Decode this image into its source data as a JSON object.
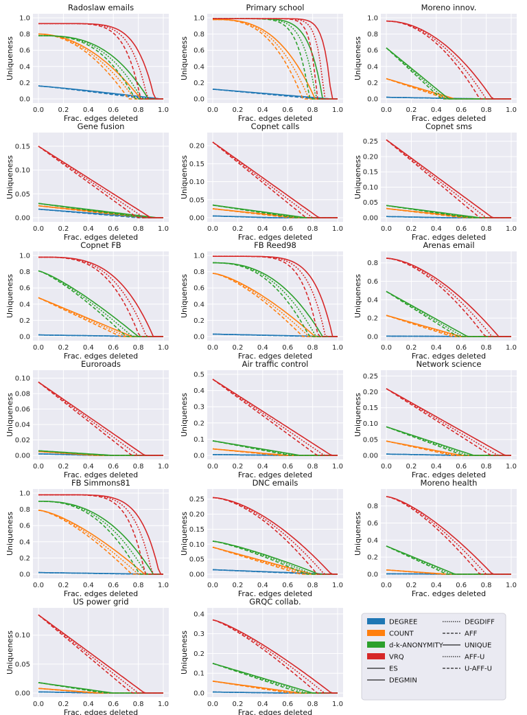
{
  "figure": {
    "xlabel": "Frac. edges deleted",
    "ylabel": "Uniqueness",
    "x_ticks": [
      "0.0",
      "0.2",
      "0.4",
      "0.6",
      "0.8",
      "1.0"
    ]
  },
  "colors": {
    "DEGREE": "#1f77b4",
    "COUNT": "#ff7f0e",
    "d-k-ANONYMITY": "#2ca02c",
    "VRQ": "#d62728",
    "panel_bg": "#eaeaf2",
    "grid": "#ffffff"
  },
  "legend": {
    "measures": [
      {
        "label": "DEGREE",
        "color": "#1f77b4"
      },
      {
        "label": "COUNT",
        "color": "#ff7f0e"
      },
      {
        "label": "d-k-ANONYMITY",
        "color": "#2ca02c"
      },
      {
        "label": "VRQ",
        "color": "#d62728"
      }
    ],
    "strategies": [
      {
        "label": "ES",
        "dash": "solid"
      },
      {
        "label": "DEGMIN",
        "dash": "solid"
      },
      {
        "label": "DEGDIFF",
        "dash": "dotted"
      },
      {
        "label": "AFF",
        "dash": "dashed"
      },
      {
        "label": "UNIQUE",
        "dash": "solid"
      },
      {
        "label": "AFF-U",
        "dash": "dotted"
      },
      {
        "label": "U-AFF-U",
        "dash": "dashed"
      }
    ]
  },
  "chart_data": [
    {
      "type": "line",
      "title": "Radoslaw emails",
      "xlabel": "Frac. edges deleted",
      "ylabel": "Uniqueness",
      "xlim": [
        0,
        1
      ],
      "ylim": [
        0,
        1.0
      ],
      "y_ticks": [
        "0.0",
        "0.2",
        "0.4",
        "0.6",
        "0.8",
        "1.0"
      ],
      "series": [
        {
          "name": "DEGREE",
          "color": "#1f77b4",
          "start": 0.16,
          "knee": 0.98,
          "sharp": 0.9
        },
        {
          "name": "COUNT",
          "color": "#ff7f0e",
          "start": 0.8,
          "knee": 0.82,
          "sharp": 0.5
        },
        {
          "name": "d-k-ANONYMITY",
          "color": "#2ca02c",
          "start": 0.78,
          "knee": 0.88,
          "sharp": 0.35
        },
        {
          "name": "VRQ",
          "color": "#d62728",
          "start": 0.93,
          "knee": 0.93,
          "sharp": 0.15
        }
      ]
    },
    {
      "type": "line",
      "title": "Primary school",
      "xlabel": "Frac. edges deleted",
      "ylabel": "Uniqueness",
      "xlim": [
        0,
        1
      ],
      "ylim": [
        0,
        1.0
      ],
      "y_ticks": [
        "0.0",
        "0.2",
        "0.4",
        "0.6",
        "0.8",
        "1.0"
      ],
      "series": [
        {
          "name": "DEGREE",
          "color": "#1f77b4",
          "start": 0.12,
          "knee": 0.95,
          "sharp": 1.0
        },
        {
          "name": "COUNT",
          "color": "#ff7f0e",
          "start": 0.98,
          "knee": 0.82,
          "sharp": 0.35
        },
        {
          "name": "d-k-ANONYMITY",
          "color": "#2ca02c",
          "start": 0.99,
          "knee": 0.88,
          "sharp": 0.12
        },
        {
          "name": "VRQ",
          "color": "#d62728",
          "start": 0.99,
          "knee": 0.95,
          "sharp": 0.06
        }
      ]
    },
    {
      "type": "line",
      "title": "Moreno innov.",
      "xlabel": "Frac. edges deleted",
      "ylabel": "Uniqueness",
      "xlim": [
        0,
        1
      ],
      "ylim": [
        0,
        1.0
      ],
      "y_ticks": [
        "0.0",
        "0.2",
        "0.4",
        "0.6",
        "0.8",
        "1.0"
      ],
      "series": [
        {
          "name": "DEGREE",
          "color": "#1f77b4",
          "start": 0.02,
          "knee": 0.8,
          "sharp": 1.0
        },
        {
          "name": "COUNT",
          "color": "#ff7f0e",
          "start": 0.25,
          "knee": 0.55,
          "sharp": 1.0
        },
        {
          "name": "d-k-ANONYMITY",
          "color": "#2ca02c",
          "start": 0.63,
          "knee": 0.5,
          "sharp": 1.0
        },
        {
          "name": "VRQ",
          "color": "#d62728",
          "start": 0.96,
          "knee": 0.85,
          "sharp": 0.5
        }
      ]
    },
    {
      "type": "line",
      "title": "Gene fusion",
      "xlabel": "Frac. edges deleted",
      "ylabel": "Uniqueness",
      "xlim": [
        0,
        1
      ],
      "ylim": [
        0,
        0.17
      ],
      "y_ticks": [
        "0.00",
        "0.05",
        "0.10",
        "0.15"
      ],
      "series": [
        {
          "name": "DEGREE",
          "color": "#1f77b4",
          "start": 0.018,
          "knee": 0.9,
          "sharp": 1.0
        },
        {
          "name": "COUNT",
          "color": "#ff7f0e",
          "start": 0.025,
          "knee": 0.95,
          "sharp": 1.0
        },
        {
          "name": "d-k-ANONYMITY",
          "color": "#2ca02c",
          "start": 0.03,
          "knee": 0.95,
          "sharp": 1.0
        },
        {
          "name": "VRQ",
          "color": "#d62728",
          "start": 0.15,
          "knee": 0.9,
          "sharp": 1.0
        }
      ]
    },
    {
      "type": "line",
      "title": "Copnet calls",
      "xlabel": "Frac. edges deleted",
      "ylabel": "Uniqueness",
      "xlim": [
        0,
        1
      ],
      "ylim": [
        0,
        0.225
      ],
      "y_ticks": [
        "0.00",
        "0.05",
        "0.10",
        "0.15",
        "0.20"
      ],
      "series": [
        {
          "name": "DEGREE",
          "color": "#1f77b4",
          "start": 0.005,
          "knee": 0.5,
          "sharp": 1.0
        },
        {
          "name": "COUNT",
          "color": "#ff7f0e",
          "start": 0.025,
          "knee": 0.7,
          "sharp": 1.0
        },
        {
          "name": "d-k-ANONYMITY",
          "color": "#2ca02c",
          "start": 0.035,
          "knee": 0.75,
          "sharp": 1.0
        },
        {
          "name": "VRQ",
          "color": "#d62728",
          "start": 0.21,
          "knee": 0.85,
          "sharp": 1.0
        }
      ]
    },
    {
      "type": "line",
      "title": "Copnet sms",
      "xlabel": "Frac. edges deleted",
      "ylabel": "Uniqueness",
      "xlim": [
        0,
        1
      ],
      "ylim": [
        0,
        0.265
      ],
      "y_ticks": [
        "0.00",
        "0.05",
        "0.10",
        "0.15",
        "0.20",
        "0.25"
      ],
      "series": [
        {
          "name": "DEGREE",
          "color": "#1f77b4",
          "start": 0.004,
          "knee": 0.5,
          "sharp": 1.0
        },
        {
          "name": "COUNT",
          "color": "#ff7f0e",
          "start": 0.03,
          "knee": 0.7,
          "sharp": 1.0
        },
        {
          "name": "d-k-ANONYMITY",
          "color": "#2ca02c",
          "start": 0.04,
          "knee": 0.75,
          "sharp": 1.0
        },
        {
          "name": "VRQ",
          "color": "#d62728",
          "start": 0.255,
          "knee": 0.85,
          "sharp": 1.0
        }
      ]
    },
    {
      "type": "line",
      "title": "Copnet FB",
      "xlabel": "Frac. edges deleted",
      "ylabel": "Uniqueness",
      "xlim": [
        0,
        1
      ],
      "ylim": [
        0,
        1.0
      ],
      "y_ticks": [
        "0.0",
        "0.2",
        "0.4",
        "0.6",
        "0.8",
        "1.0"
      ],
      "series": [
        {
          "name": "DEGREE",
          "color": "#1f77b4",
          "start": 0.02,
          "knee": 0.9,
          "sharp": 1.0
        },
        {
          "name": "COUNT",
          "color": "#ff7f0e",
          "start": 0.48,
          "knee": 0.75,
          "sharp": 1.0
        },
        {
          "name": "d-k-ANONYMITY",
          "color": "#2ca02c",
          "start": 0.81,
          "knee": 0.8,
          "sharp": 0.8
        },
        {
          "name": "VRQ",
          "color": "#d62728",
          "start": 0.98,
          "knee": 0.92,
          "sharp": 0.3
        }
      ]
    },
    {
      "type": "line",
      "title": "FB Reed98",
      "xlabel": "Frac. edges deleted",
      "ylabel": "Uniqueness",
      "xlim": [
        0,
        1
      ],
      "ylim": [
        0,
        1.0
      ],
      "y_ticks": [
        "0.0",
        "0.2",
        "0.4",
        "0.6",
        "0.8",
        "1.0"
      ],
      "series": [
        {
          "name": "DEGREE",
          "color": "#1f77b4",
          "start": 0.03,
          "knee": 0.95,
          "sharp": 1.0
        },
        {
          "name": "COUNT",
          "color": "#ff7f0e",
          "start": 0.78,
          "knee": 0.82,
          "sharp": 0.7
        },
        {
          "name": "d-k-ANONYMITY",
          "color": "#2ca02c",
          "start": 0.91,
          "knee": 0.88,
          "sharp": 0.4
        },
        {
          "name": "VRQ",
          "color": "#d62728",
          "start": 0.99,
          "knee": 0.96,
          "sharp": 0.15
        }
      ]
    },
    {
      "type": "line",
      "title": "Arenas email",
      "xlabel": "Frac. edges deleted",
      "ylabel": "Uniqueness",
      "xlim": [
        0,
        1
      ],
      "ylim": [
        0,
        0.88
      ],
      "y_ticks": [
        "0.0",
        "0.2",
        "0.4",
        "0.6",
        "0.8"
      ],
      "series": [
        {
          "name": "DEGREE",
          "color": "#1f77b4",
          "start": 0.005,
          "knee": 0.8,
          "sharp": 1.0
        },
        {
          "name": "COUNT",
          "color": "#ff7f0e",
          "start": 0.23,
          "knee": 0.6,
          "sharp": 1.0
        },
        {
          "name": "d-k-ANONYMITY",
          "color": "#2ca02c",
          "start": 0.49,
          "knee": 0.65,
          "sharp": 1.0
        },
        {
          "name": "VRQ",
          "color": "#d62728",
          "start": 0.85,
          "knee": 0.9,
          "sharp": 0.6
        }
      ]
    },
    {
      "type": "line",
      "title": "Euroroads",
      "xlabel": "Frac. edges deleted",
      "ylabel": "Uniqueness",
      "xlim": [
        0,
        1
      ],
      "ylim": [
        0,
        0.105
      ],
      "y_ticks": [
        "0.00",
        "0.02",
        "0.04",
        "0.06",
        "0.08",
        "0.10"
      ],
      "series": [
        {
          "name": "DEGREE",
          "color": "#1f77b4",
          "start": 0.002,
          "knee": 0.5,
          "sharp": 1.0
        },
        {
          "name": "COUNT",
          "color": "#ff7f0e",
          "start": 0.005,
          "knee": 0.5,
          "sharp": 1.0
        },
        {
          "name": "d-k-ANONYMITY",
          "color": "#2ca02c",
          "start": 0.006,
          "knee": 0.6,
          "sharp": 1.0
        },
        {
          "name": "VRQ",
          "color": "#d62728",
          "start": 0.095,
          "knee": 0.85,
          "sharp": 1.0
        }
      ]
    },
    {
      "type": "line",
      "title": "Air traffic control",
      "xlabel": "Frac. edges deleted",
      "ylabel": "Uniqueness",
      "xlim": [
        0,
        1
      ],
      "ylim": [
        0,
        0.5
      ],
      "y_ticks": [
        "0.0",
        "0.1",
        "0.2",
        "0.3",
        "0.4",
        "0.5"
      ],
      "series": [
        {
          "name": "DEGREE",
          "color": "#1f77b4",
          "start": 0.005,
          "knee": 0.6,
          "sharp": 1.0
        },
        {
          "name": "COUNT",
          "color": "#ff7f0e",
          "start": 0.04,
          "knee": 0.6,
          "sharp": 1.0
        },
        {
          "name": "d-k-ANONYMITY",
          "color": "#2ca02c",
          "start": 0.09,
          "knee": 0.7,
          "sharp": 1.0
        },
        {
          "name": "VRQ",
          "color": "#d62728",
          "start": 0.47,
          "knee": 0.95,
          "sharp": 1.0
        }
      ]
    },
    {
      "type": "line",
      "title": "Network science",
      "xlabel": "Frac. edges deleted",
      "ylabel": "Uniqueness",
      "xlim": [
        0,
        1
      ],
      "ylim": [
        0,
        0.255
      ],
      "y_ticks": [
        "0.00",
        "0.05",
        "0.10",
        "0.15",
        "0.20",
        "0.25"
      ],
      "series": [
        {
          "name": "DEGREE",
          "color": "#1f77b4",
          "start": 0.004,
          "knee": 0.6,
          "sharp": 1.0
        },
        {
          "name": "COUNT",
          "color": "#ff7f0e",
          "start": 0.045,
          "knee": 0.6,
          "sharp": 1.0
        },
        {
          "name": "d-k-ANONYMITY",
          "color": "#2ca02c",
          "start": 0.09,
          "knee": 0.7,
          "sharp": 1.0
        },
        {
          "name": "VRQ",
          "color": "#d62728",
          "start": 0.21,
          "knee": 0.95,
          "sharp": 1.0
        }
      ]
    },
    {
      "type": "line",
      "title": "FB Simmons81",
      "xlabel": "Frac. edges deleted",
      "ylabel": "Uniqueness",
      "xlim": [
        0,
        1
      ],
      "ylim": [
        0,
        1.0
      ],
      "y_ticks": [
        "0.0",
        "0.2",
        "0.4",
        "0.6",
        "0.8",
        "1.0"
      ],
      "series": [
        {
          "name": "DEGREE",
          "color": "#1f77b4",
          "start": 0.02,
          "knee": 0.95,
          "sharp": 1.0
        },
        {
          "name": "COUNT",
          "color": "#ff7f0e",
          "start": 0.79,
          "knee": 0.85,
          "sharp": 0.7
        },
        {
          "name": "d-k-ANONYMITY",
          "color": "#2ca02c",
          "start": 0.9,
          "knee": 0.92,
          "sharp": 0.4
        },
        {
          "name": "VRQ",
          "color": "#d62728",
          "start": 0.98,
          "knee": 0.97,
          "sharp": 0.15
        }
      ]
    },
    {
      "type": "line",
      "title": "DNC emails",
      "xlabel": "Frac. edges deleted",
      "ylabel": "Uniqueness",
      "xlim": [
        0,
        1
      ],
      "ylim": [
        0,
        0.27
      ],
      "y_ticks": [
        "0.00",
        "0.05",
        "0.10",
        "0.15",
        "0.20",
        "0.25"
      ],
      "series": [
        {
          "name": "DEGREE",
          "color": "#1f77b4",
          "start": 0.015,
          "knee": 0.95,
          "sharp": 1.0
        },
        {
          "name": "COUNT",
          "color": "#ff7f0e",
          "start": 0.09,
          "knee": 0.8,
          "sharp": 1.0
        },
        {
          "name": "d-k-ANONYMITY",
          "color": "#2ca02c",
          "start": 0.11,
          "knee": 0.85,
          "sharp": 0.8
        },
        {
          "name": "VRQ",
          "color": "#d62728",
          "start": 0.255,
          "knee": 0.95,
          "sharp": 0.6
        }
      ]
    },
    {
      "type": "line",
      "title": "Moreno health",
      "xlabel": "Frac. edges deleted",
      "ylabel": "Uniqueness",
      "xlim": [
        0,
        1
      ],
      "ylim": [
        0,
        0.95
      ],
      "y_ticks": [
        "0.0",
        "0.2",
        "0.4",
        "0.6",
        "0.8"
      ],
      "series": [
        {
          "name": "DEGREE",
          "color": "#1f77b4",
          "start": 0.005,
          "knee": 0.6,
          "sharp": 1.0
        },
        {
          "name": "COUNT",
          "color": "#ff7f0e",
          "start": 0.05,
          "knee": 0.5,
          "sharp": 1.0
        },
        {
          "name": "d-k-ANONYMITY",
          "color": "#2ca02c",
          "start": 0.33,
          "knee": 0.55,
          "sharp": 1.0
        },
        {
          "name": "VRQ",
          "color": "#d62728",
          "start": 0.91,
          "knee": 0.85,
          "sharp": 0.7
        }
      ]
    },
    {
      "type": "line",
      "title": "US power grid",
      "xlabel": "Frac. edges deleted",
      "ylabel": "Uniqueness",
      "xlim": [
        0,
        1
      ],
      "ylim": [
        0,
        0.14
      ],
      "y_ticks": [
        "0.00",
        "0.05",
        "0.10"
      ],
      "series": [
        {
          "name": "DEGREE",
          "color": "#1f77b4",
          "start": 0.002,
          "knee": 0.5,
          "sharp": 1.0
        },
        {
          "name": "COUNT",
          "color": "#ff7f0e",
          "start": 0.008,
          "knee": 0.5,
          "sharp": 1.0
        },
        {
          "name": "d-k-ANONYMITY",
          "color": "#2ca02c",
          "start": 0.018,
          "knee": 0.6,
          "sharp": 1.0
        },
        {
          "name": "VRQ",
          "color": "#d62728",
          "start": 0.135,
          "knee": 0.85,
          "sharp": 1.0
        }
      ]
    },
    {
      "type": "line",
      "title": "GRQC collab.",
      "xlabel": "Frac. edges deleted",
      "ylabel": "Uniqueness",
      "xlim": [
        0,
        1
      ],
      "ylim": [
        0,
        0.41
      ],
      "y_ticks": [
        "0.0",
        "0.1",
        "0.2",
        "0.3",
        "0.4"
      ],
      "series": [
        {
          "name": "DEGREE",
          "color": "#1f77b4",
          "start": 0.005,
          "knee": 0.6,
          "sharp": 1.0
        },
        {
          "name": "COUNT",
          "color": "#ff7f0e",
          "start": 0.06,
          "knee": 0.7,
          "sharp": 1.0
        },
        {
          "name": "d-k-ANONYMITY",
          "color": "#2ca02c",
          "start": 0.15,
          "knee": 0.8,
          "sharp": 1.0
        },
        {
          "name": "VRQ",
          "color": "#d62728",
          "start": 0.37,
          "knee": 0.95,
          "sharp": 0.8
        }
      ]
    }
  ]
}
